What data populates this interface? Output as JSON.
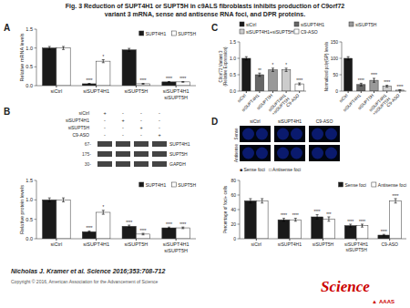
{
  "chart_data": [
    {
      "type": "bar",
      "title": "Fig. 3 Reduction of SUPT4H1 or SUPT5H in c9ALS fibroblasts inhibits production of C9orf72",
      "subtitle": "variant 3 mRNA, sense and antisense RNA foci, and DPR proteins.",
      "annotations": [
        "A"
      ],
      "categories": [
        "siCtrl",
        "siSUPT4H1",
        "siSUPT5H",
        "siSUPT4H1\nsiSUPT5H"
      ],
      "series": [
        {
          "name": "SUPT4H1",
          "color": "#1a1a1a",
          "values": [
            1.0,
            0.05,
            0.95,
            0.1
          ],
          "errors": [
            0.04,
            0.01,
            0.04,
            0.01
          ],
          "annotations": [
            null,
            "****",
            null,
            "****"
          ]
        },
        {
          "name": "SUPT5H",
          "color": "#ffffff",
          "values": [
            1.0,
            0.65,
            0.05,
            0.1
          ],
          "errors": [
            0.04,
            0.04,
            0.01,
            0.01
          ],
          "annotations": [
            null,
            "*",
            "****",
            "****"
          ]
        }
      ],
      "ylabel": "Relative mRNA levels",
      "ylim": [
        0,
        1.5
      ],
      "yticks": [
        {
          "value": 0,
          "label": "0.0"
        },
        0.5,
        {
          "value": 1,
          "label": "1.0"
        },
        1.5
      ],
      "legend": "upper right",
      "grid": false
    },
    {
      "type": "bar",
      "annotations": [
        "B",
        "siCtrl",
        "siSUPT4H1",
        "siSUPT5H",
        "C9-ASO",
        "+",
        "-",
        "-",
        "-",
        "-",
        "+",
        "-",
        "-",
        "-",
        "-",
        "+",
        "-",
        "-",
        "-",
        "-",
        "+",
        "67-",
        "175-",
        "30-",
        "SUPT4H1",
        "SUPT5H",
        "GAPDH"
      ],
      "categories": [
        "siCtrl",
        "siSUPT4H1",
        "siSUPT5H",
        "siSUPT4H1\nsiSUPT5H"
      ],
      "series": [
        {
          "name": "SUPT4H1",
          "color": "#1a1a1a",
          "values": [
            1.0,
            0.18,
            0.32,
            0.28
          ],
          "errors": [
            0.05,
            0.02,
            0.03,
            0.02
          ],
          "annotations": [
            null,
            "****",
            "****",
            "****"
          ]
        },
        {
          "name": "SUPT5H",
          "color": "#ffffff",
          "values": [
            1.0,
            0.68,
            0.12,
            0.28
          ],
          "errors": [
            0.05,
            0.05,
            0.02,
            0.02
          ],
          "annotations": [
            null,
            "*",
            "****",
            "****"
          ]
        }
      ],
      "ylabel": "Relative protein levels",
      "ylim": [
        0,
        1.5
      ],
      "yticks": [
        {
          "value": 0,
          "label": "0.0"
        },
        0.5,
        {
          "value": 1,
          "label": "1.0"
        },
        1.5
      ],
      "legend": "upper right",
      "grid": false
    },
    {
      "type": "bar",
      "annotations": [
        "C",
        "siCtrl",
        "siSUPT4H1",
        "siSUPT5H",
        "siSUPT4H1+siSUPT5H",
        "C9-ASO"
      ],
      "categories": [
        "siCtrl",
        "siSUPT4H1",
        "siSUPT5H",
        "siSUPT4H1\n+siSUPT5H",
        "C9-ASO"
      ],
      "series": [
        {
          "colors": [
            "#1a1a1a",
            "#666666",
            "#999999",
            "#cccccc",
            "#ffffff"
          ],
          "values": [
            1.0,
            0.5,
            0.65,
            0.65,
            0.22
          ],
          "errors": [
            0.05,
            0.05,
            0.05,
            0.05,
            0.03
          ],
          "annotations": [
            null,
            "**",
            "*",
            "*",
            "****"
          ]
        }
      ],
      "ylabel": "C9orf72 Variant 3\n(Relative Expression)",
      "ylim": [
        0,
        1.5
      ],
      "yticks": [
        {
          "value": 0,
          "label": "0.0"
        },
        0.5,
        {
          "value": 1,
          "label": "1.0"
        },
        1.5
      ],
      "grid": false
    },
    {
      "type": "bar",
      "categories": [
        "siCtrl",
        "siSUPT4H1",
        "siSUPT5H",
        "siSUPT4H1\n+siSUPT5H",
        "C9-ASO"
      ],
      "series": [
        {
          "colors": [
            "#1a1a1a",
            "#666666",
            "#999999",
            "#cccccc",
            "#ffffff"
          ],
          "values": [
            100,
            20,
            33,
            15,
            3
          ],
          "errors": [
            5,
            4,
            6,
            3,
            1
          ],
          "annotations": [
            null,
            "****",
            "****",
            "****",
            "****"
          ]
        }
      ],
      "ylabel": "Normalized poly(GP) levels",
      "ylim": [
        0,
        150
      ],
      "yticks": [
        0,
        50,
        100,
        150
      ],
      "grid": false
    },
    {
      "type": "bar",
      "annotations": [
        "D",
        "siCtrl",
        "siSUPT4H1",
        "C9-ASO",
        "Sense",
        "Antisense",
        "■ Sense foci   □ Antisense foci",
        "Nicholas J. Kramer et al. Science 2016;353:708-712",
        "Copyright © 2016, American Association for the Advancement of Science",
        "Science",
        "▲",
        "AAAS"
      ],
      "categories": [
        "siCtrl",
        "siSUPT4H1",
        "siSUPT5H",
        "siSUPT4H1\nsiSUPT5H",
        "C9-ASO"
      ],
      "series": [
        {
          "name": "Sense foci",
          "color": "#1a1a1a",
          "values": [
            52,
            26,
            30,
            18,
            5
          ],
          "errors": [
            3,
            2,
            3,
            2,
            1
          ],
          "annotations": [
            null,
            "****",
            "****",
            "****",
            "****"
          ]
        },
        {
          "name": "Antisense foci",
          "color": "#ffffff",
          "values": [
            52,
            26,
            27,
            18,
            52
          ],
          "errors": [
            3,
            2,
            3,
            2,
            3
          ],
          "annotations": [
            null,
            "****",
            "***",
            "****",
            "****"
          ]
        }
      ],
      "ylabel": "Percentage of foci+ cells",
      "ylim": [
        0,
        80
      ],
      "yticks": [
        0,
        20,
        40,
        60,
        80
      ],
      "legend": "upper right",
      "grid": false
    }
  ]
}
